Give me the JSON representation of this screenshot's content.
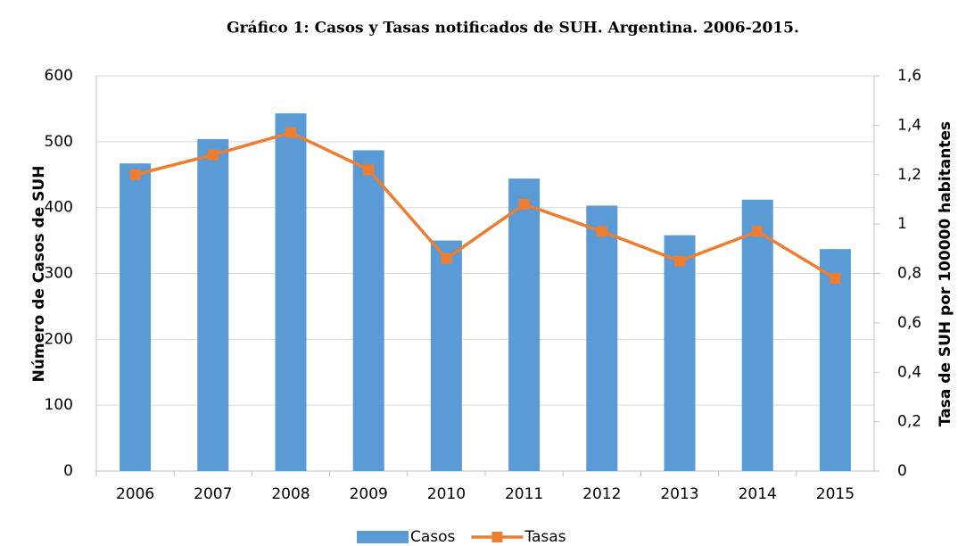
{
  "chart_data": {
    "type": "bar",
    "title": "Gráfico 1: Casos y Tasas notificados de SUH. Argentina. 2006-2015.",
    "y_label": "Número de Casos de SUH",
    "y2_label": "Tasa de SUH por 100000 habitantes",
    "categories": [
      "2006",
      "2007",
      "2008",
      "2009",
      "2010",
      "2011",
      "2012",
      "2013",
      "2014",
      "2015"
    ],
    "series": [
      {
        "name": "Casos",
        "type": "bar",
        "color": "#5b9bd5",
        "values": [
          467,
          504,
          543,
          487,
          350,
          444,
          403,
          358,
          412,
          337
        ]
      },
      {
        "name": "Tasas",
        "type": "line",
        "axis": "y2",
        "color": "#ed7d31",
        "values": [
          1.2,
          1.28,
          1.37,
          1.22,
          0.86,
          1.08,
          0.97,
          0.85,
          0.97,
          0.78
        ]
      }
    ],
    "ylim": [
      0,
      600
    ],
    "yticks": [
      0,
      100,
      200,
      300,
      400,
      500,
      600
    ],
    "y2lim": [
      0,
      1.6
    ],
    "y2ticks": [
      0,
      {
        "value": 0.2,
        "label": "0,2"
      },
      {
        "value": 0.4,
        "label": "0,4"
      },
      {
        "value": 0.6,
        "label": "0,6"
      },
      {
        "value": 0.8,
        "label": "0,8"
      },
      1,
      {
        "value": 1.2,
        "label": "1,2"
      },
      {
        "value": 1.4,
        "label": "1,4"
      },
      {
        "value": 1.6,
        "label": "1,6"
      }
    ],
    "grid": true,
    "legend": "bottom"
  }
}
